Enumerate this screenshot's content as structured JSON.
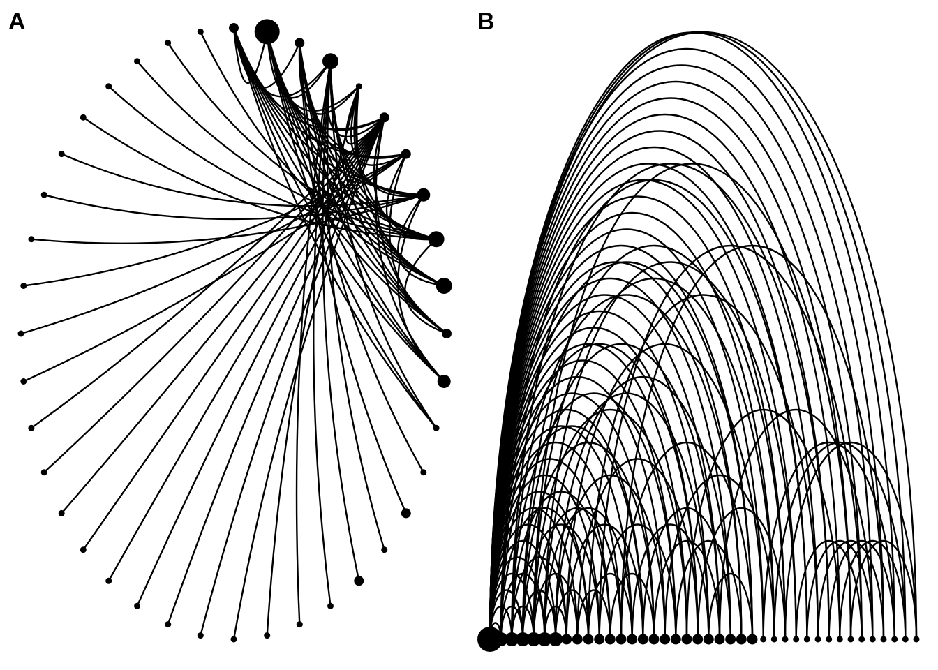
{
  "colors": {
    "background": "#ffffff",
    "ink": "#000000"
  },
  "panels": [
    {
      "label": "A",
      "layout": "circular",
      "node_sizes": [
        2,
        5,
        2,
        4,
        1,
        2,
        2,
        3,
        4,
        4,
        2,
        3,
        1,
        1,
        2,
        1,
        2,
        1,
        1,
        1,
        1,
        1,
        1,
        1,
        1,
        1,
        1,
        1,
        1,
        1,
        1,
        1,
        1,
        1,
        1,
        1,
        1,
        1,
        1,
        1
      ],
      "edges": [
        [
          0,
          1
        ],
        [
          0,
          2
        ],
        [
          0,
          3
        ],
        [
          0,
          5
        ],
        [
          0,
          6
        ],
        [
          0,
          7
        ],
        [
          0,
          8
        ],
        [
          0,
          9
        ],
        [
          0,
          10
        ],
        [
          0,
          11
        ],
        [
          0,
          12
        ],
        [
          1,
          3
        ],
        [
          1,
          4
        ],
        [
          1,
          5
        ],
        [
          1,
          6
        ],
        [
          1,
          7
        ],
        [
          1,
          8
        ],
        [
          1,
          9
        ],
        [
          1,
          10
        ],
        [
          1,
          11
        ],
        [
          1,
          12
        ],
        [
          2,
          4
        ],
        [
          2,
          6
        ],
        [
          2,
          7
        ],
        [
          2,
          8
        ],
        [
          2,
          9
        ],
        [
          2,
          10
        ],
        [
          2,
          11
        ],
        [
          2,
          13
        ],
        [
          2,
          14
        ],
        [
          3,
          5
        ],
        [
          3,
          7
        ],
        [
          3,
          8
        ],
        [
          3,
          9
        ],
        [
          3,
          10
        ],
        [
          3,
          12
        ],
        [
          3,
          15
        ],
        [
          3,
          16
        ],
        [
          3,
          17
        ],
        [
          3,
          18
        ],
        [
          4,
          5
        ],
        [
          4,
          6
        ],
        [
          4,
          7
        ],
        [
          4,
          8
        ],
        [
          4,
          9
        ],
        [
          4,
          19
        ],
        [
          5,
          8
        ],
        [
          5,
          10
        ],
        [
          5,
          11
        ],
        [
          5,
          20
        ],
        [
          5,
          21
        ],
        [
          5,
          22
        ],
        [
          5,
          23
        ],
        [
          5,
          24
        ],
        [
          5,
          25
        ],
        [
          5,
          26
        ],
        [
          5,
          27
        ],
        [
          5,
          28
        ],
        [
          6,
          8
        ],
        [
          6,
          10
        ],
        [
          6,
          29
        ],
        [
          6,
          30
        ],
        [
          6,
          31
        ],
        [
          7,
          9
        ],
        [
          7,
          11
        ],
        [
          7,
          32
        ],
        [
          7,
          33
        ],
        [
          7,
          34
        ],
        [
          8,
          10
        ],
        [
          8,
          35
        ],
        [
          8,
          36
        ],
        [
          8,
          37
        ],
        [
          8,
          38
        ],
        [
          9,
          39
        ]
      ]
    },
    {
      "label": "B",
      "layout": "arc",
      "node_sizes": [
        5,
        4,
        4,
        4,
        4,
        4,
        4,
        3,
        3,
        3,
        3,
        3,
        3,
        3,
        3,
        3,
        3,
        3,
        3,
        3,
        3,
        3,
        3,
        3,
        3,
        2,
        2,
        2,
        2,
        2,
        2,
        2,
        2,
        2,
        2,
        2,
        2,
        2,
        2,
        2
      ],
      "edges": [
        [
          0,
          1
        ],
        [
          0,
          2
        ],
        [
          0,
          3
        ],
        [
          0,
          4
        ],
        [
          0,
          5
        ],
        [
          0,
          6
        ],
        [
          0,
          7
        ],
        [
          0,
          8
        ],
        [
          0,
          9
        ],
        [
          0,
          10
        ],
        [
          0,
          11
        ],
        [
          0,
          12
        ],
        [
          0,
          13
        ],
        [
          0,
          14
        ],
        [
          0,
          15
        ],
        [
          0,
          16
        ],
        [
          0,
          17
        ],
        [
          0,
          18
        ],
        [
          0,
          19
        ],
        [
          0,
          20
        ],
        [
          0,
          21
        ],
        [
          0,
          22
        ],
        [
          0,
          23
        ],
        [
          0,
          24
        ],
        [
          0,
          25
        ],
        [
          0,
          26
        ],
        [
          0,
          27
        ],
        [
          0,
          28
        ],
        [
          0,
          29
        ],
        [
          0,
          30
        ],
        [
          0,
          31
        ],
        [
          0,
          32
        ],
        [
          0,
          33
        ],
        [
          0,
          34
        ],
        [
          0,
          35
        ],
        [
          0,
          36
        ],
        [
          0,
          37
        ],
        [
          0,
          38
        ],
        [
          0,
          39
        ],
        [
          1,
          3
        ],
        [
          1,
          5
        ],
        [
          1,
          9
        ],
        [
          1,
          14
        ],
        [
          1,
          19
        ],
        [
          1,
          24
        ],
        [
          1,
          29
        ],
        [
          2,
          4
        ],
        [
          2,
          7
        ],
        [
          2,
          11
        ],
        [
          2,
          17
        ],
        [
          2,
          23
        ],
        [
          2,
          31
        ],
        [
          3,
          6
        ],
        [
          3,
          10
        ],
        [
          3,
          15
        ],
        [
          3,
          21
        ],
        [
          3,
          27
        ],
        [
          4,
          8
        ],
        [
          4,
          12
        ],
        [
          4,
          18
        ],
        [
          4,
          26
        ],
        [
          4,
          33
        ],
        [
          5,
          7
        ],
        [
          5,
          13
        ],
        [
          5,
          20
        ],
        [
          5,
          28
        ],
        [
          6,
          9
        ],
        [
          6,
          16
        ],
        [
          6,
          22
        ],
        [
          7,
          14
        ],
        [
          7,
          25
        ],
        [
          8,
          11
        ],
        [
          8,
          19
        ],
        [
          9,
          13
        ],
        [
          9,
          30
        ],
        [
          10,
          17
        ],
        [
          10,
          34
        ],
        [
          11,
          15
        ],
        [
          12,
          24
        ],
        [
          12,
          36
        ],
        [
          13,
          20
        ],
        [
          14,
          22
        ],
        [
          15,
          21
        ],
        [
          16,
          26
        ],
        [
          17,
          23
        ],
        [
          18,
          32
        ],
        [
          19,
          27
        ],
        [
          20,
          24
        ],
        [
          21,
          35
        ],
        [
          25,
          37
        ],
        [
          26,
          38
        ],
        [
          27,
          39
        ],
        [
          28,
          34
        ],
        [
          29,
          35
        ],
        [
          30,
          36
        ],
        [
          31,
          37
        ],
        [
          32,
          38
        ],
        [
          33,
          39
        ]
      ]
    }
  ]
}
